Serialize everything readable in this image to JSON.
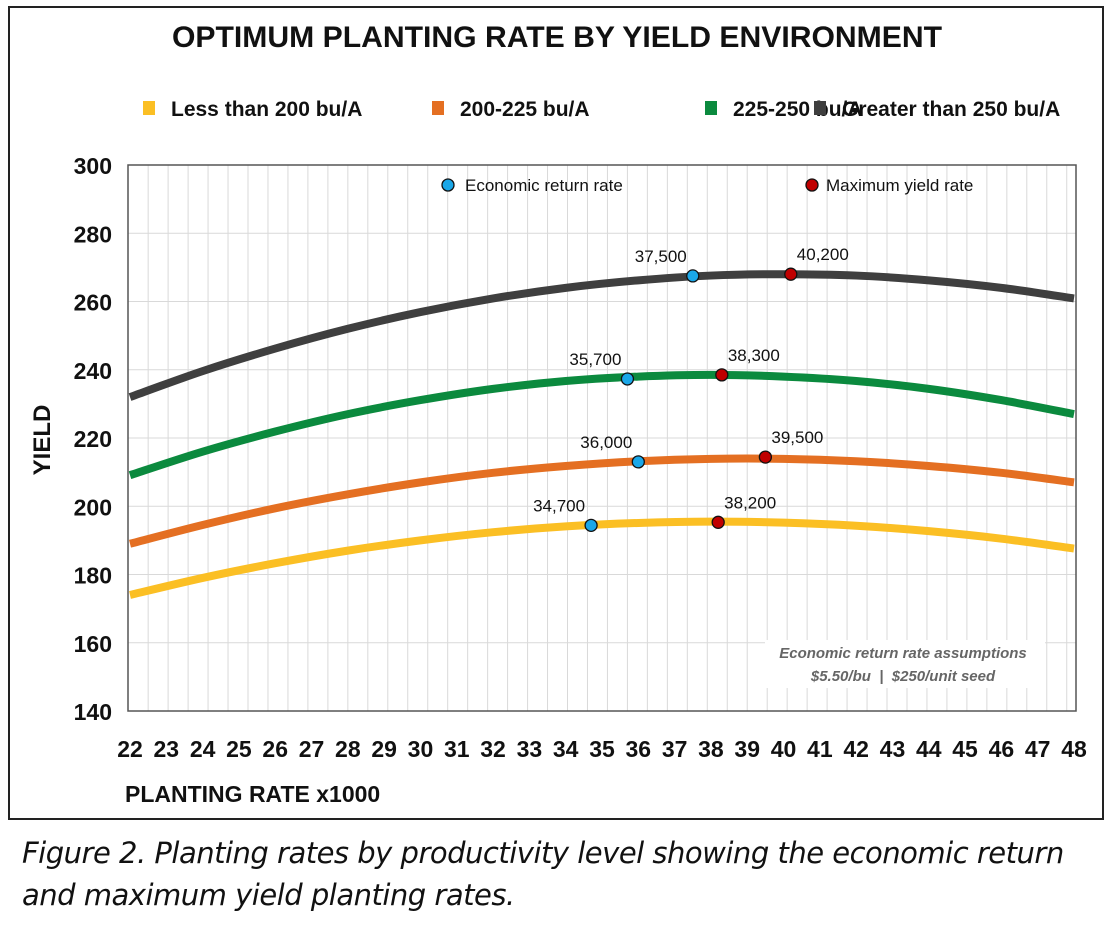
{
  "chart_data": {
    "type": "line",
    "title": "OPTIMUM PLANTING RATE BY YIELD ENVIRONMENT",
    "xlabel": "PLANTING RATE x1000",
    "ylabel": "YIELD",
    "xlim": [
      22,
      48
    ],
    "ylim": [
      140,
      300
    ],
    "xticks": [
      "22",
      "23",
      "24",
      "25",
      "26",
      "27",
      "28",
      "29",
      "30",
      "31",
      "32",
      "33",
      "34",
      "35",
      "36",
      "37",
      "38",
      "39",
      "40",
      "41",
      "42",
      "43",
      "44",
      "45",
      "46",
      "47",
      "48"
    ],
    "yticks": [
      "140",
      "160",
      "180",
      "200",
      "220",
      "240",
      "260",
      "280",
      "300"
    ],
    "grid": true,
    "legend_position": "top",
    "x": [
      22,
      24,
      26,
      28,
      30,
      32,
      34,
      36,
      38,
      40,
      42,
      44,
      46,
      48
    ],
    "series": [
      {
        "name": "Less than 200 bu/A",
        "color": "#FBBF24",
        "values": [
          174.0,
          179.0,
          183.3,
          187.0,
          190.0,
          192.4,
          194.1,
          195.1,
          195.5,
          195.2,
          194.3,
          192.7,
          190.5,
          187.6
        ],
        "economic": {
          "x": 34.7,
          "y": 194.4,
          "label": "34,700"
        },
        "maximum": {
          "x": 38.2,
          "y": 195.3,
          "label": "38,200"
        }
      },
      {
        "name": "200-225 bu/A",
        "color": "#E46F22",
        "values": [
          189.0,
          194.5,
          199.4,
          203.5,
          207.0,
          209.8,
          211.8,
          213.2,
          213.9,
          213.9,
          213.2,
          211.8,
          209.8,
          207.0
        ],
        "economic": {
          "x": 36.0,
          "y": 213.0,
          "label": "36,000"
        },
        "maximum": {
          "x": 39.5,
          "y": 214.4,
          "label": "39,500"
        }
      },
      {
        "name": "225-250 bu/A",
        "color": "#0B8A3E",
        "values": [
          209.1,
          216.0,
          221.9,
          227.0,
          231.1,
          234.4,
          236.7,
          238.0,
          238.5,
          238.0,
          236.7,
          234.4,
          231.1,
          227.0
        ],
        "economic": {
          "x": 35.7,
          "y": 237.3,
          "label": "35,700"
        },
        "maximum": {
          "x": 38.3,
          "y": 238.5,
          "label": "38,300"
        }
      },
      {
        "name": "Greater than 250 bu/A",
        "color": "#3F3F3F",
        "values": [
          232.0,
          239.6,
          246.2,
          252.0,
          256.9,
          260.9,
          264.0,
          266.2,
          267.6,
          268.0,
          267.6,
          266.2,
          264.0,
          260.9
        ],
        "economic": {
          "x": 37.5,
          "y": 267.5,
          "label": "37,500"
        },
        "maximum": {
          "x": 40.2,
          "y": 268.0,
          "label": "40,200"
        }
      }
    ],
    "marker_legend": {
      "economic": {
        "label": "Economic return rate",
        "color": "#1AA7E8"
      },
      "maximum": {
        "label": "Maximum yield rate",
        "color": "#C00000"
      }
    },
    "annotation": {
      "line1": "Economic return rate assumptions",
      "line2": "$5.50/bu  |  $250/unit seed"
    }
  },
  "caption": "Figure 2. Planting rates by productivity level showing the economic return and maximum yield planting rates."
}
